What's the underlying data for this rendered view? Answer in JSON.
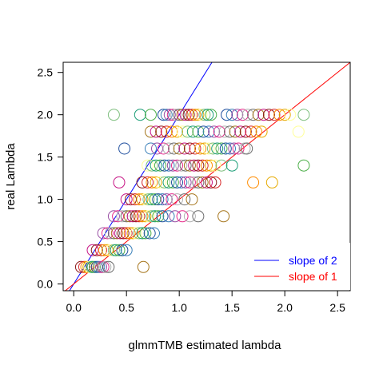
{
  "chart_data": {
    "type": "scatter",
    "title": "",
    "xlabel": "glmmTMB estimated lambda",
    "ylabel": "real Lambda",
    "xlim": [
      -0.1,
      2.62
    ],
    "ylim": [
      -0.08,
      2.62
    ],
    "xticks": [
      {
        "value": 0.0,
        "label": "0.0"
      },
      {
        "value": 0.5,
        "label": "0.5"
      },
      {
        "value": 1.0,
        "label": "1.0"
      },
      {
        "value": 1.5,
        "label": "1.5"
      },
      {
        "value": 2.0,
        "label": "2.0"
      },
      {
        "value": 2.5,
        "label": "2.5"
      }
    ],
    "yticks": [
      {
        "value": 0.0,
        "label": "0.0"
      },
      {
        "value": 0.5,
        "label": "0.5"
      },
      {
        "value": 1.0,
        "label": "1.0"
      },
      {
        "value": 1.5,
        "label": "1.5"
      },
      {
        "value": 2.0,
        "label": "2.0"
      },
      {
        "value": 2.5,
        "label": "2.5"
      }
    ],
    "grid": false,
    "legend_position": "bottom-right",
    "palette": [
      "#8b1a1a",
      "#d62728",
      "#ff8c00",
      "#e6ab02",
      "#ffff99",
      "#7fbf7f",
      "#1b9e77",
      "#4daf4a",
      "#1f4e9e",
      "#377eb8",
      "#984ea3",
      "#e7298a",
      "#b0b0b0",
      "#6b6b6b",
      "#a6761d",
      "#c71585"
    ],
    "lines": [
      {
        "name": "slope of 2",
        "slope": 2,
        "intercept": 0,
        "color": "#0000ff"
      },
      {
        "name": "slope of 1",
        "slope": 1,
        "intercept": 0,
        "color": "#ff0000"
      }
    ],
    "series": [
      {
        "name": "",
        "real": 0.2,
        "estimated": [
          0.07,
          0.1,
          0.12,
          0.14,
          0.15,
          0.17,
          0.18,
          0.2,
          0.22,
          0.24,
          0.26,
          0.28,
          0.3,
          0.33,
          0.66
        ]
      },
      {
        "name": "",
        "real": 0.4,
        "estimated": [
          0.18,
          0.22,
          0.26,
          0.29,
          0.32,
          0.35,
          0.38,
          0.4,
          0.43,
          0.46,
          0.5
        ]
      },
      {
        "name": "",
        "real": 0.6,
        "estimated": [
          0.28,
          0.32,
          0.35,
          0.38,
          0.41,
          0.44,
          0.47,
          0.5,
          0.53,
          0.56,
          0.59,
          0.62,
          0.65,
          0.68,
          0.72,
          0.76
        ]
      },
      {
        "name": "",
        "real": 0.8,
        "estimated": [
          0.38,
          0.42,
          0.46,
          0.5,
          0.53,
          0.56,
          0.59,
          0.62,
          0.65,
          0.68,
          0.71,
          0.74,
          0.77,
          0.8,
          0.84,
          0.9,
          0.96,
          1.03,
          1.1,
          1.18,
          1.42
        ]
      },
      {
        "name": "",
        "real": 1.0,
        "estimated": [
          0.5,
          0.54,
          0.58,
          0.62,
          0.65,
          0.68,
          0.71,
          0.74,
          0.77,
          0.8,
          0.84,
          0.88,
          0.93,
          0.98,
          1.05,
          1.12
        ]
      },
      {
        "name": "",
        "real": 1.2,
        "estimated": [
          0.43,
          0.65,
          0.7,
          0.74,
          0.78,
          0.82,
          0.86,
          0.9,
          0.94,
          0.98,
          1.02,
          1.06,
          1.1,
          1.14,
          1.18,
          1.22,
          1.26,
          1.3,
          1.34,
          1.7,
          1.88
        ]
      },
      {
        "name": "",
        "real": 1.4,
        "estimated": [
          0.7,
          0.74,
          0.78,
          0.82,
          0.86,
          0.9,
          0.94,
          0.98,
          1.02,
          1.06,
          1.1,
          1.14,
          1.18,
          1.22,
          1.26,
          1.3,
          1.34,
          1.4,
          1.5,
          2.18
        ]
      },
      {
        "name": "",
        "real": 1.6,
        "estimated": [
          0.48,
          0.73,
          0.79,
          0.85,
          0.9,
          0.95,
          1.0,
          1.05,
          1.1,
          1.15,
          1.2,
          1.24,
          1.28,
          1.32,
          1.36,
          1.4,
          1.44,
          1.48,
          1.52,
          1.56,
          1.62,
          1.64
        ]
      },
      {
        "name": "",
        "real": 1.8,
        "estimated": [
          0.73,
          0.78,
          0.83,
          0.88,
          0.93,
          0.98,
          1.03,
          1.08,
          1.13,
          1.18,
          1.23,
          1.28,
          1.33,
          1.38,
          1.43,
          1.48,
          1.53,
          1.58,
          1.63,
          1.68,
          1.73,
          1.78,
          2.13
        ]
      },
      {
        "name": "",
        "real": 2.0,
        "estimated": [
          0.38,
          0.63,
          0.73,
          0.85,
          0.88,
          0.91,
          0.94,
          0.97,
          1.0,
          1.03,
          1.06,
          1.09,
          1.12,
          1.15,
          1.18,
          1.21,
          1.24,
          1.27,
          1.3,
          1.45,
          1.5,
          1.55,
          1.6,
          1.65,
          1.7,
          1.75,
          1.8,
          1.85,
          1.9,
          1.95,
          2.0,
          2.05,
          2.18
        ]
      }
    ]
  }
}
